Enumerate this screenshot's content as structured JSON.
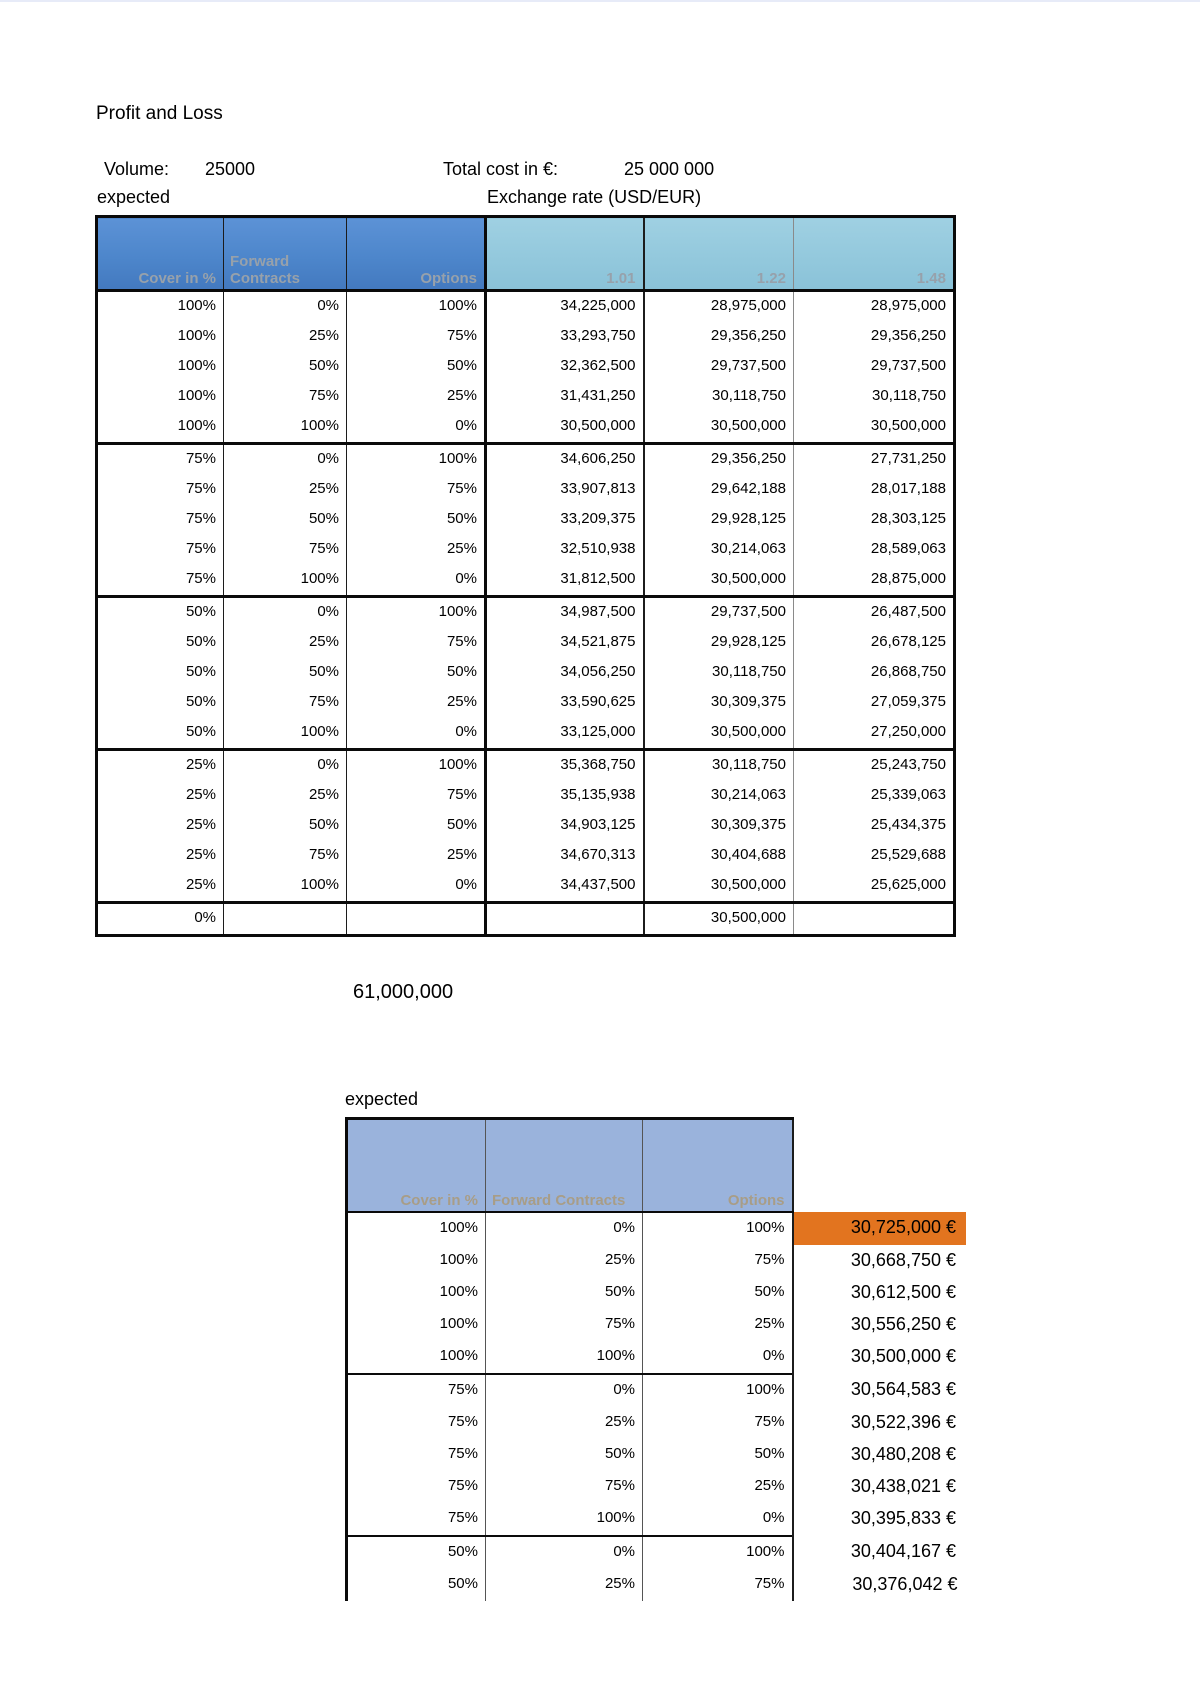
{
  "page": {
    "title": "Profit and Loss",
    "volume_label": "Volume:",
    "volume_value": "25000",
    "total_cost_label": "Total cost in €:",
    "total_cost_value": "25 000 000",
    "expected_top": "expected",
    "exchange_rate_label": "Exchange rate (USD/EUR)",
    "options_total": "61,000,000",
    "expected_bottom": "expected"
  },
  "colors": {
    "table1_header_blue": "#4d86cb",
    "table1_header_cyan": "#92c8dc",
    "table1_header_text": "#97a1ab",
    "table2_header_blue": "#9ab3dc",
    "table2_header_text": "#a89d87",
    "highlight_orange": "#e2741f"
  },
  "table1": {
    "columns": [
      "Cover in %",
      "Forward Contracts",
      "Options",
      "1.01",
      "1.22",
      "1.48"
    ],
    "groups": [
      [
        [
          "100%",
          "0%",
          "100%",
          "34,225,000",
          "28,975,000",
          "28,975,000"
        ],
        [
          "100%",
          "25%",
          "75%",
          "33,293,750",
          "29,356,250",
          "29,356,250"
        ],
        [
          "100%",
          "50%",
          "50%",
          "32,362,500",
          "29,737,500",
          "29,737,500"
        ],
        [
          "100%",
          "75%",
          "25%",
          "31,431,250",
          "30,118,750",
          "30,118,750"
        ],
        [
          "100%",
          "100%",
          "0%",
          "30,500,000",
          "30,500,000",
          "30,500,000"
        ]
      ],
      [
        [
          "75%",
          "0%",
          "100%",
          "34,606,250",
          "29,356,250",
          "27,731,250"
        ],
        [
          "75%",
          "25%",
          "75%",
          "33,907,813",
          "29,642,188",
          "28,017,188"
        ],
        [
          "75%",
          "50%",
          "50%",
          "33,209,375",
          "29,928,125",
          "28,303,125"
        ],
        [
          "75%",
          "75%",
          "25%",
          "32,510,938",
          "30,214,063",
          "28,589,063"
        ],
        [
          "75%",
          "100%",
          "0%",
          "31,812,500",
          "30,500,000",
          "28,875,000"
        ]
      ],
      [
        [
          "50%",
          "0%",
          "100%",
          "34,987,500",
          "29,737,500",
          "26,487,500"
        ],
        [
          "50%",
          "25%",
          "75%",
          "34,521,875",
          "29,928,125",
          "26,678,125"
        ],
        [
          "50%",
          "50%",
          "50%",
          "34,056,250",
          "30,118,750",
          "26,868,750"
        ],
        [
          "50%",
          "75%",
          "25%",
          "33,590,625",
          "30,309,375",
          "27,059,375"
        ],
        [
          "50%",
          "100%",
          "0%",
          "33,125,000",
          "30,500,000",
          "27,250,000"
        ]
      ],
      [
        [
          "25%",
          "0%",
          "100%",
          "35,368,750",
          "30,118,750",
          "25,243,750"
        ],
        [
          "25%",
          "25%",
          "75%",
          "35,135,938",
          "30,214,063",
          "25,339,063"
        ],
        [
          "25%",
          "50%",
          "50%",
          "34,903,125",
          "30,309,375",
          "25,434,375"
        ],
        [
          "25%",
          "75%",
          "25%",
          "34,670,313",
          "30,404,688",
          "25,529,688"
        ],
        [
          "25%",
          "100%",
          "0%",
          "34,437,500",
          "30,500,000",
          "25,625,000"
        ]
      ],
      [
        [
          "0%",
          "",
          "",
          "",
          "30,500,000",
          ""
        ]
      ]
    ]
  },
  "table2": {
    "columns": [
      "Cover in %",
      "Forward Contracts",
      "Options"
    ],
    "groups": [
      [
        [
          "100%",
          "0%",
          "100%",
          "30,725,000 €"
        ],
        [
          "100%",
          "25%",
          "75%",
          "30,668,750 €"
        ],
        [
          "100%",
          "50%",
          "50%",
          "30,612,500 €"
        ],
        [
          "100%",
          "75%",
          "25%",
          "30,556,250 €"
        ],
        [
          "100%",
          "100%",
          "0%",
          "30,500,000 €"
        ]
      ],
      [
        [
          "75%",
          "0%",
          "100%",
          "30,564,583 €"
        ],
        [
          "75%",
          "25%",
          "75%",
          "30,522,396 €"
        ],
        [
          "75%",
          "50%",
          "50%",
          "30,480,208 €"
        ],
        [
          "75%",
          "75%",
          "25%",
          "30,438,021 €"
        ],
        [
          "75%",
          "100%",
          "0%",
          "30,395,833 €"
        ]
      ],
      [
        [
          "50%",
          "0%",
          "100%",
          "30,404,167 €"
        ],
        [
          "50%",
          "25%",
          "75%",
          "30,376,042 €"
        ]
      ]
    ]
  }
}
